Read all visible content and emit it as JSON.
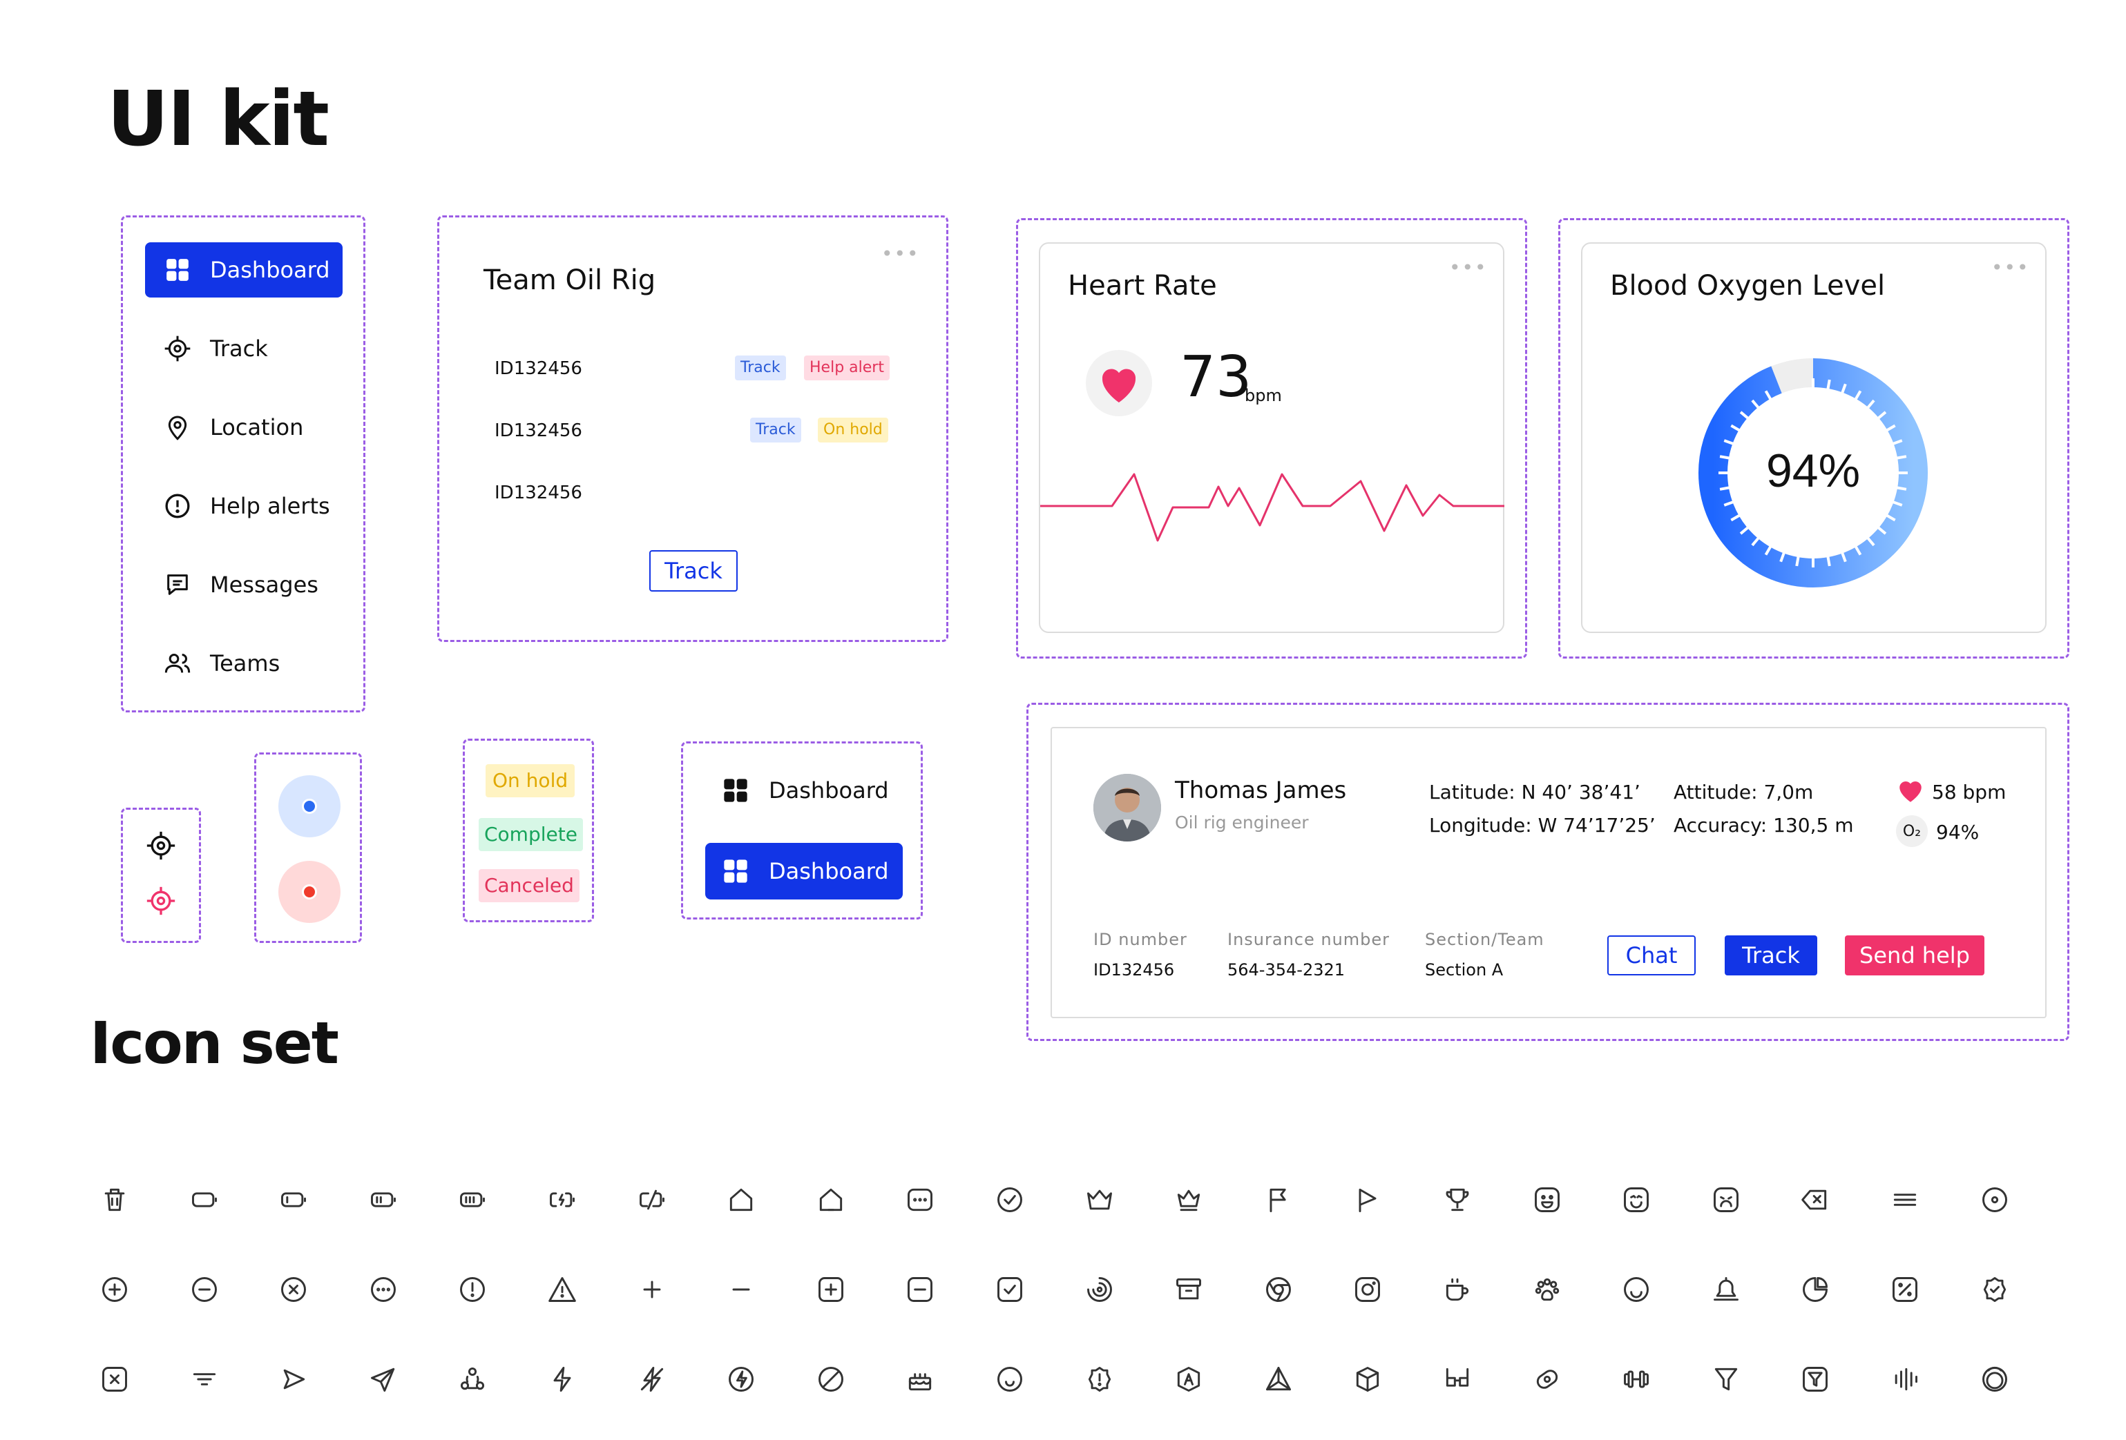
{
  "titles": {
    "ui_kit": "UI kit",
    "icon_set": "Icon set"
  },
  "sidebar": {
    "items": [
      {
        "label": "Dashboard",
        "icon": "grid-icon",
        "active": true
      },
      {
        "label": "Track",
        "icon": "crosshair-icon"
      },
      {
        "label": "Location",
        "icon": "location-pin-icon"
      },
      {
        "label": "Help alerts",
        "icon": "alert-circle-icon"
      },
      {
        "label": "Messages",
        "icon": "message-icon"
      },
      {
        "label": "Teams",
        "icon": "users-icon"
      }
    ]
  },
  "team_card": {
    "title": "Team Oil Rig",
    "rows": [
      {
        "id": "ID132456",
        "tags": [
          "Track",
          "Help alert"
        ]
      },
      {
        "id": "ID132456",
        "tags": [
          "Track",
          "On hold"
        ]
      },
      {
        "id": "ID132456",
        "tags": []
      }
    ],
    "track_button": "Track",
    "menu": "•••"
  },
  "heart_card": {
    "title": "Heart Rate",
    "value": "73",
    "unit": "bpm",
    "menu": "•••"
  },
  "oxygen_card": {
    "title": "Blood Oxygen Level",
    "value": "94%",
    "level": 0.94,
    "menu": "•••"
  },
  "status_tags": [
    "On hold",
    "Complete",
    "Canceled"
  ],
  "dashboard_variants": {
    "default": "Dashboard",
    "active": "Dashboard"
  },
  "person_card": {
    "name": "Thomas James",
    "role": "Oil rig engineer",
    "latitude": "Latitude: N 40’ 38’41’",
    "longitude": "Longitude: W 74’17’25’",
    "altitude": "Attitude: 7,0m",
    "accuracy": "Accuracy: 130,5 m",
    "heart": "58 bpm",
    "oxygen": "94%",
    "oxygen_symbol": "O₂",
    "id_label": "ID number",
    "id_value": "ID132456",
    "insurance_label": "Insurance number",
    "insurance_value": "564-354-2321",
    "section_label": "Section/Team",
    "section_value": "Section A",
    "chat_button": "Chat",
    "track_button": "Track",
    "help_button": "Send help"
  },
  "colors": {
    "primary": "#1235e6",
    "danger": "#f0336b",
    "purple_dash": "#9b5de5",
    "heart": "#f0336b"
  },
  "icon_set": [
    [
      "trash-icon",
      "battery-empty-icon",
      "battery-low-icon",
      "battery-mid-icon",
      "battery-full-icon",
      "battery-charging-icon",
      "battery-off-icon",
      "home-icon",
      "home-alt-icon",
      "chat-dots-icon",
      "check-circle-icon",
      "crown-icon",
      "crown-alt-icon",
      "flag-icon",
      "flag-triangle-icon",
      "trophy-icon",
      "happy-face-icon",
      "smile-face-icon",
      "sad-face-icon",
      "backspace-icon",
      "menu-icon",
      "radio-icon"
    ],
    [
      "plus-circle-icon",
      "minus-circle-icon",
      "x-circle-icon",
      "more-circle-icon",
      "alert-circle-icon",
      "warning-icon",
      "plus-icon",
      "minus-icon",
      "plus-square-icon",
      "minus-square-icon",
      "check-square-icon",
      "spinner-icon",
      "archive-icon",
      "chrome-icon",
      "instagram-icon",
      "coffee-icon",
      "paw-icon",
      "smile-icon",
      "bell-icon",
      "pie-icon",
      "percent-square-icon",
      "badge-check-icon"
    ],
    [
      "x-square-icon",
      "filter-lines-icon",
      "play-send-icon",
      "send-icon",
      "share-nodes-icon",
      "bolt-icon",
      "bolt-off-icon",
      "bolt-circle-icon",
      "block-icon",
      "cake-icon",
      "smile-outline-icon",
      "badge-alert-icon",
      "badge-a-icon",
      "triangle-nodes-icon",
      "cube-icon",
      "glasses-icon",
      "pill-icon",
      "dumbbell-icon",
      "funnel-icon",
      "funnel-square-icon",
      "sound-bars-icon",
      "rings-icon"
    ]
  ]
}
